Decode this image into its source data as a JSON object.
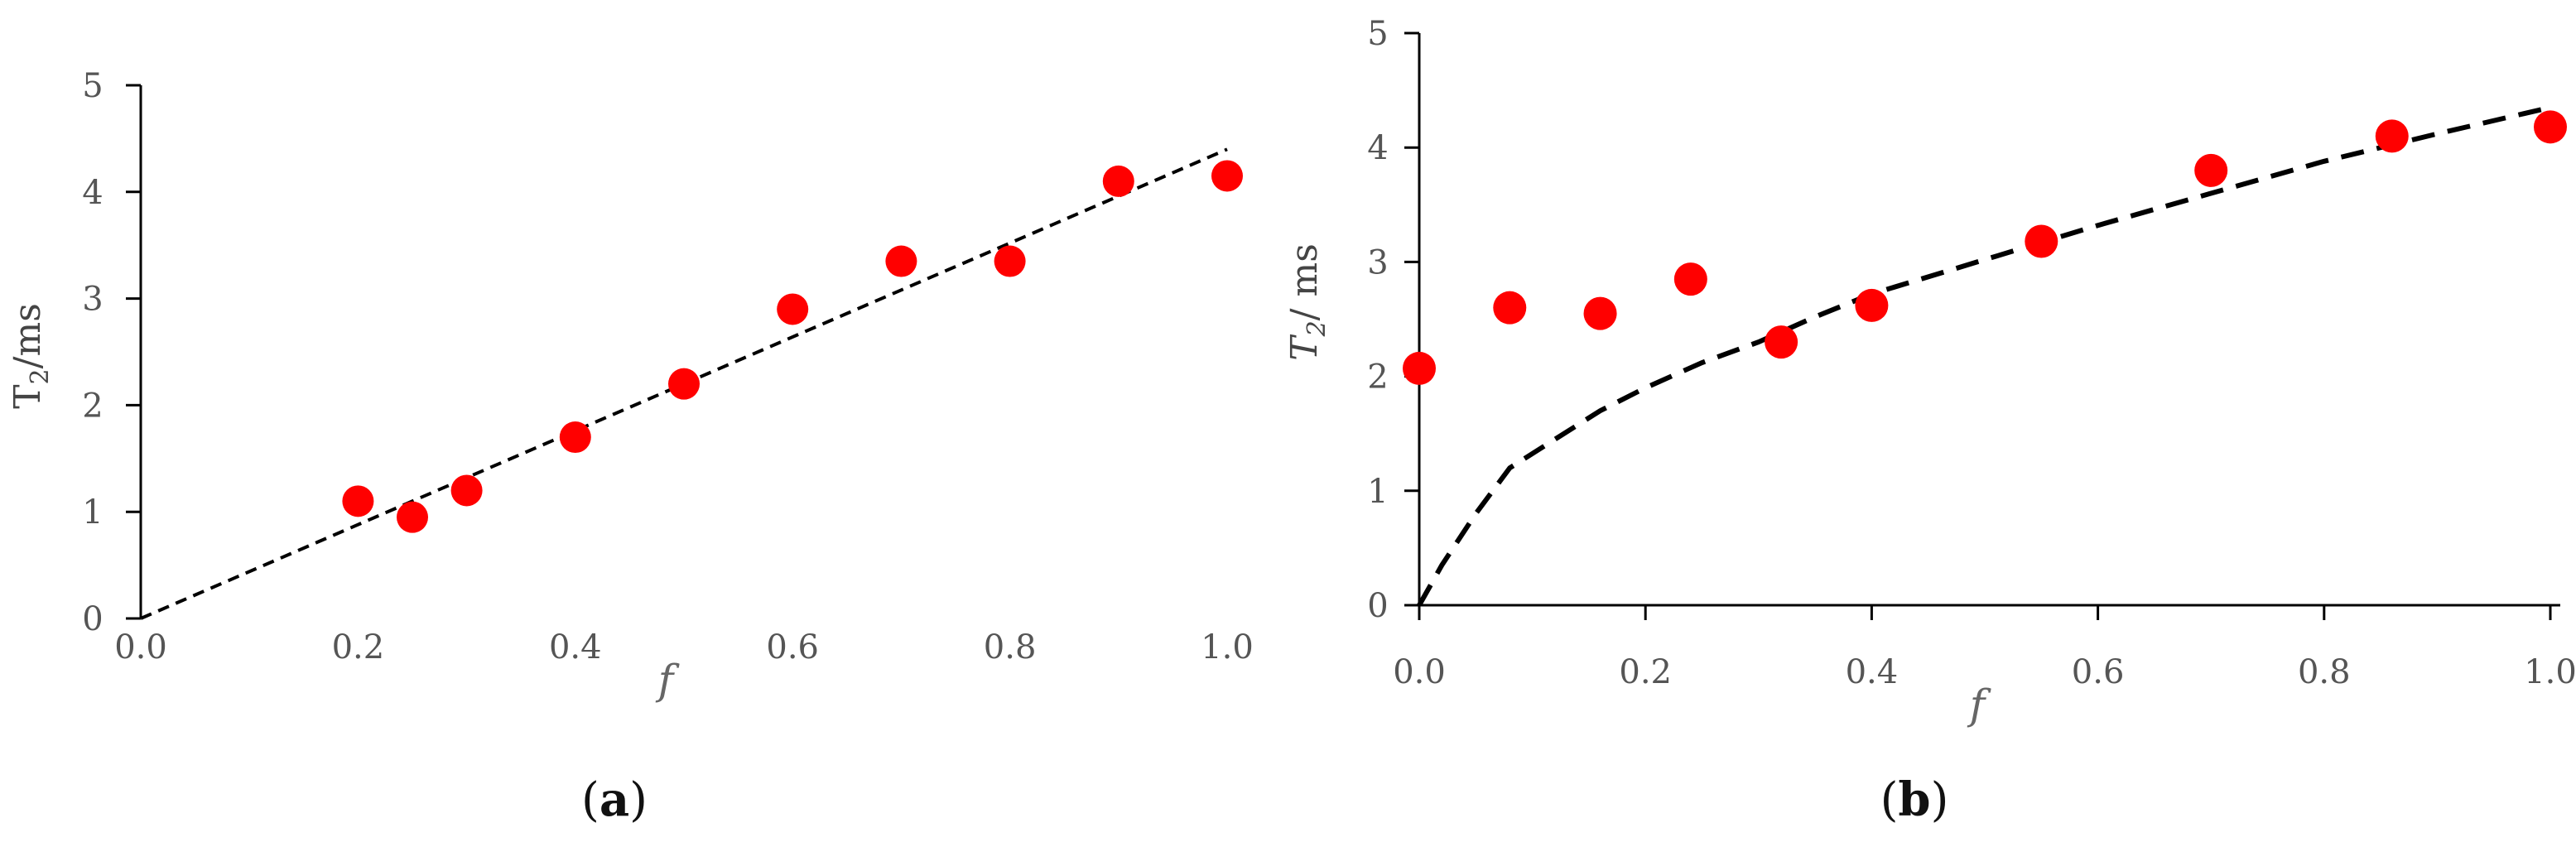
{
  "chart_data": [
    {
      "type": "scatter",
      "panel": "(a)",
      "panel_letter": "a",
      "xlabel": "f",
      "ylabel": "T2/ms",
      "ylabel_main": "T",
      "ylabel_sub": "2",
      "ylabel_unit": "/ms",
      "xlim": [
        0.0,
        1.0
      ],
      "ylim": [
        0,
        5
      ],
      "x_ticks": [
        "0.0",
        "0.2",
        "0.4",
        "0.6",
        "0.8",
        "1.0"
      ],
      "y_ticks": [
        "0",
        "1",
        "2",
        "3",
        "4",
        "5"
      ],
      "grid": false,
      "series": [
        {
          "kind": "points",
          "color": "#ff0000",
          "x": [
            0.2,
            0.25,
            0.3,
            0.4,
            0.5,
            0.6,
            0.7,
            0.8,
            0.9,
            1.0
          ],
          "y": [
            1.1,
            0.95,
            1.2,
            1.7,
            2.2,
            2.9,
            3.35,
            3.35,
            4.1,
            4.15
          ]
        },
        {
          "kind": "dashed-line",
          "color": "#000000",
          "x": [
            0.0,
            1.0
          ],
          "y": [
            0.0,
            4.4
          ]
        }
      ]
    },
    {
      "type": "scatter",
      "panel": "(b)",
      "panel_letter": "b",
      "xlabel": "f",
      "ylabel": "T2/ ms",
      "ylabel_main": "T",
      "ylabel_sub": "2",
      "ylabel_unit": "/ ms",
      "xlim": [
        0.0,
        1.0
      ],
      "ylim": [
        0,
        5
      ],
      "x_ticks": [
        "0.0",
        "0.2",
        "0.4",
        "0.6",
        "0.8",
        "1.0"
      ],
      "y_ticks": [
        "0",
        "1",
        "2",
        "3",
        "4",
        "5"
      ],
      "grid": false,
      "series": [
        {
          "kind": "points",
          "color": "#ff0000",
          "x": [
            0.0,
            0.08,
            0.16,
            0.24,
            0.32,
            0.4,
            0.55,
            0.7,
            0.86,
            1.0
          ],
          "y": [
            2.07,
            2.6,
            2.55,
            2.85,
            2.3,
            2.62,
            3.18,
            3.8,
            4.1,
            4.18
          ]
        },
        {
          "kind": "dashed-line",
          "color": "#000000",
          "x": [
            0.0,
            0.02,
            0.05,
            0.08,
            0.12,
            0.16,
            0.2,
            0.25,
            0.3,
            0.35,
            0.4,
            0.5,
            0.6,
            0.7,
            0.8,
            0.9,
            1.0
          ],
          "y": [
            0.0,
            0.35,
            0.8,
            1.2,
            1.45,
            1.7,
            1.9,
            2.12,
            2.3,
            2.52,
            2.72,
            3.02,
            3.32,
            3.6,
            3.88,
            4.12,
            4.35
          ]
        }
      ]
    }
  ]
}
